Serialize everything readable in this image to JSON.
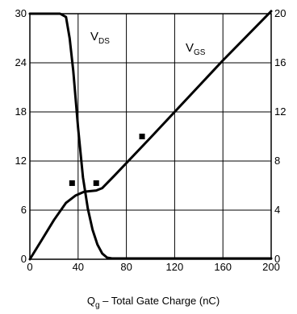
{
  "chart_data": {
    "type": "line",
    "xlabel": "Q",
    "xlabel_sub": "g",
    "xlabel_rest": " – Total Gate Charge (nC)",
    "xlim": [
      0,
      200
    ],
    "ylim_left": [
      0,
      30
    ],
    "ylim_right": [
      0,
      20
    ],
    "x_ticks": [
      "0",
      "40",
      "80",
      "120",
      "160",
      "200"
    ],
    "y_left_ticks": [
      "0",
      "6",
      "12",
      "18",
      "24",
      "30"
    ],
    "y_right_ticks": [
      "0",
      "4",
      "8",
      "12",
      "16",
      "20"
    ],
    "grid": true,
    "series": [
      {
        "name_main": "V",
        "name_sub": "DS",
        "axis": "left",
        "x": [
          0,
          25,
          30,
          33,
          36,
          40,
          44,
          48,
          52,
          56,
          60,
          64,
          68,
          80,
          120,
          200
        ],
        "y": [
          30,
          30,
          29.6,
          27,
          23,
          16,
          10,
          6.2,
          3.6,
          1.8,
          0.7,
          0.2,
          0.1,
          0.1,
          0.1,
          0.1
        ]
      },
      {
        "name_main": "V",
        "name_sub": "GS",
        "axis": "right",
        "x": [
          0,
          10,
          20,
          30,
          38,
          45,
          55,
          60,
          70,
          100,
          140,
          160,
          200
        ],
        "y": [
          0,
          1.6,
          3.2,
          4.6,
          5.2,
          5.5,
          5.6,
          5.8,
          6.8,
          9.9,
          14.1,
          16.2,
          20.2
        ]
      }
    ],
    "markers": [
      {
        "x": 35,
        "y_left": 9.3
      },
      {
        "x": 55,
        "y_left": 9.3
      },
      {
        "x": 93,
        "y_left": 15
      }
    ]
  }
}
